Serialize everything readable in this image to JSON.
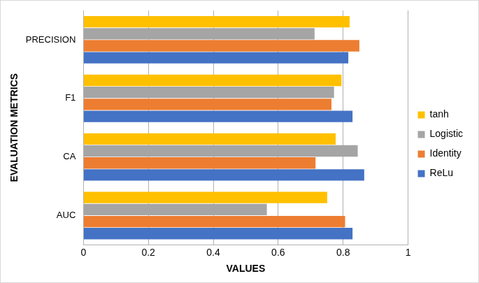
{
  "chart_data": {
    "type": "bar",
    "orientation": "horizontal",
    "x_label": "VALUES",
    "y_label": "EVALUATION METRICS",
    "categories": [
      "PRECISION",
      "F1",
      "CA",
      "AUC"
    ],
    "series": [
      {
        "name": "tanh",
        "color": "#ffc000",
        "values": [
          0.82,
          0.795,
          0.777,
          0.751
        ]
      },
      {
        "name": "Logistic",
        "color": "#a5a5a5",
        "values": [
          0.712,
          0.772,
          0.845,
          0.565
        ]
      },
      {
        "name": "Identity",
        "color": "#ed7d31",
        "values": [
          0.85,
          0.764,
          0.715,
          0.806
        ]
      },
      {
        "name": "ReLu",
        "color": "#4472c4",
        "values": [
          0.816,
          0.829,
          0.865,
          0.829
        ]
      }
    ],
    "xlim": [
      0,
      1
    ],
    "xticks": [
      0,
      0.2,
      0.4,
      0.6,
      0.8,
      1
    ],
    "grid": true,
    "legend": "right"
  }
}
